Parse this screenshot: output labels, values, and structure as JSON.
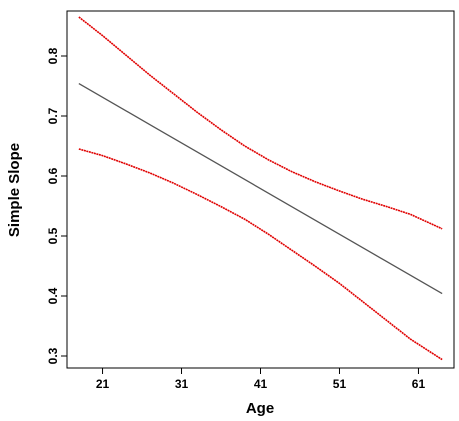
{
  "chart_data": {
    "type": "line",
    "title": "",
    "xlabel": "Age",
    "ylabel": "Simple Slope",
    "xlim": [
      16.5,
      65.5
    ],
    "ylim": [
      0.28,
      0.875
    ],
    "xticks": [
      21,
      31,
      41,
      51,
      61
    ],
    "yticks": [
      0.3,
      0.4,
      0.5,
      0.6,
      0.7,
      0.8
    ],
    "grid": false,
    "legend": "none",
    "colors": {
      "estimate": "#555555",
      "bounds": "#e00000",
      "frame": "#000000"
    },
    "series": [
      {
        "role": "estimate",
        "x": [
          18,
          64
        ],
        "y": [
          0.754,
          0.404
        ]
      },
      {
        "role": "upper-bound",
        "x": [
          18,
          21,
          24,
          27,
          30,
          33,
          36,
          39,
          42,
          45,
          48,
          51,
          54,
          57,
          60,
          64
        ],
        "y": [
          0.865,
          0.834,
          0.801,
          0.768,
          0.737,
          0.706,
          0.677,
          0.65,
          0.627,
          0.607,
          0.59,
          0.575,
          0.561,
          0.549,
          0.536,
          0.512
        ]
      },
      {
        "role": "lower-bound",
        "x": [
          18,
          21,
          24,
          27,
          30,
          33,
          36,
          39,
          42,
          45,
          48,
          51,
          54,
          57,
          60,
          64
        ],
        "y": [
          0.645,
          0.634,
          0.62,
          0.605,
          0.588,
          0.569,
          0.549,
          0.528,
          0.503,
          0.476,
          0.449,
          0.421,
          0.39,
          0.359,
          0.328,
          0.294
        ]
      }
    ]
  }
}
